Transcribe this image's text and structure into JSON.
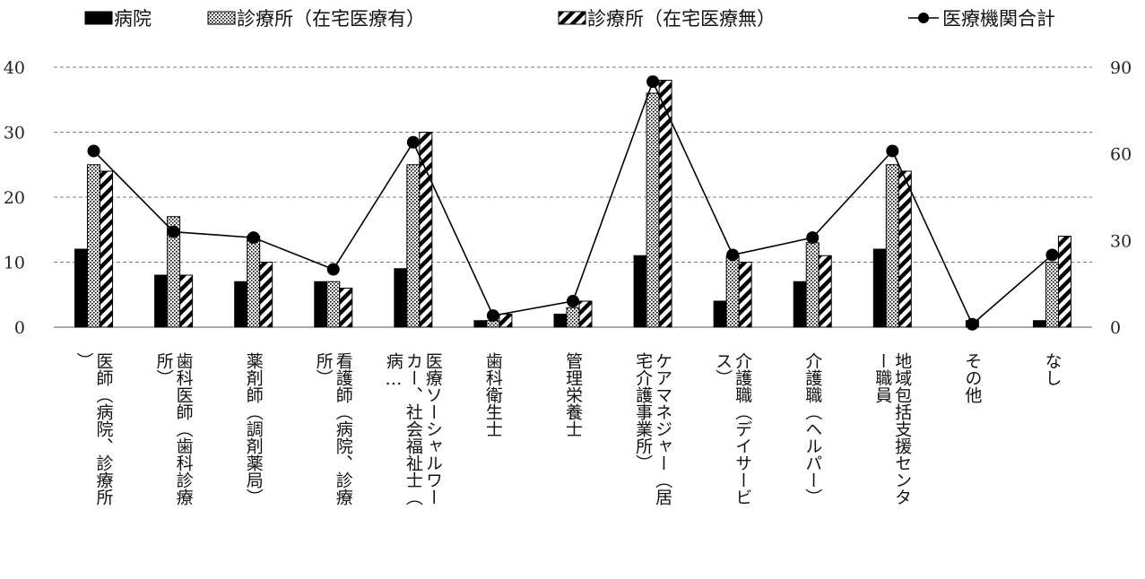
{
  "chart_data": {
    "type": "bar",
    "combo": "bar-line-dual-axis",
    "categories": [
      "医師（病院、診療所）",
      "歯科医師（歯科診療所）",
      "薬剤師（調剤薬局）",
      "看護師（病院、診療所）",
      "医療ソーシャルワーカー、社会福祉士（病…",
      "歯科衛生士",
      "管理栄養士",
      "ケアマネジャー（居宅介護事業所）",
      "介護職（デイサービス）",
      "介護職（ヘルパー）",
      "地域包括支援センター職員",
      "その他",
      "なし"
    ],
    "series": [
      {
        "name": "病院",
        "type": "bar",
        "axis": "left",
        "pattern": "solid",
        "values": [
          12,
          8,
          7,
          7,
          9,
          1,
          2,
          11,
          4,
          7,
          12,
          0,
          1
        ]
      },
      {
        "name": "診療所（在宅医療有）",
        "type": "bar",
        "axis": "left",
        "pattern": "dots",
        "values": [
          25,
          17,
          14,
          7,
          25,
          1,
          3,
          36,
          11,
          13,
          25,
          1,
          10
        ]
      },
      {
        "name": "診療所（在宅医療無）",
        "type": "bar",
        "axis": "left",
        "pattern": "diagonal-stripes",
        "values": [
          24,
          8,
          10,
          6,
          30,
          2,
          4,
          38,
          10,
          11,
          24,
          0,
          14
        ]
      },
      {
        "name": "医療機関合計",
        "type": "line",
        "axis": "right",
        "marker": "circle",
        "values": [
          61,
          33,
          31,
          20,
          64,
          4,
          9,
          85,
          25,
          31,
          61,
          1,
          25
        ]
      }
    ],
    "yleft": {
      "ticks": [
        "0",
        "10",
        "20",
        "30",
        "40"
      ],
      "ylim": [
        0,
        40
      ]
    },
    "yright": {
      "ticks": [
        "0",
        "30",
        "60",
        "90"
      ],
      "ylim": [
        0,
        90
      ]
    },
    "grid": true,
    "legend": "top",
    "colors": {
      "bar": "#000000",
      "line": "#000000",
      "grid": "#777777",
      "background": "#ffffff"
    }
  }
}
